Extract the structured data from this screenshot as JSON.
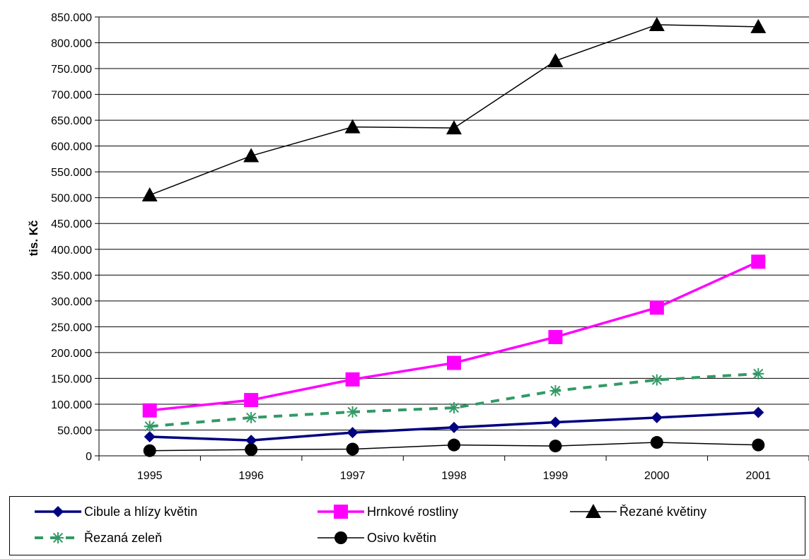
{
  "chart_data": {
    "type": "line",
    "title": "",
    "xlabel": "",
    "ylabel": "tis. Kč",
    "ylim": [
      0,
      850000
    ],
    "y_tick_step": 50000,
    "y_tick_labels": [
      "0",
      "50.000",
      "100.000",
      "150.000",
      "200.000",
      "250.000",
      "300.000",
      "350.000",
      "400.000",
      "450.000",
      "500.000",
      "550.000",
      "600.000",
      "650.000",
      "700.000",
      "750.000",
      "800.000",
      "850.000"
    ],
    "categories": [
      "1995",
      "1996",
      "1997",
      "1998",
      "1999",
      "2000",
      "2001"
    ],
    "grid": true,
    "legend_position": "bottom",
    "series": [
      {
        "name": "Cibule a hlízy květin",
        "values": [
          37000,
          30000,
          45000,
          55000,
          65000,
          74000,
          84000
        ],
        "color": "#000080",
        "marker": "diamond",
        "line": "solid-thick"
      },
      {
        "name": "Hrnkové rostliny",
        "values": [
          88000,
          108000,
          148000,
          180000,
          230000,
          287000,
          376000
        ],
        "color": "#FF00FF",
        "marker": "square",
        "line": "solid-thick"
      },
      {
        "name": "Řezané květiny",
        "values": [
          505000,
          581000,
          637000,
          635000,
          765000,
          835000,
          831000
        ],
        "color": "#000000",
        "marker": "triangle",
        "line": "solid-thin"
      },
      {
        "name": "Řezaná zeleň",
        "values": [
          57000,
          74000,
          85000,
          93000,
          126000,
          147000,
          159000
        ],
        "color": "#339966",
        "marker": "asterisk",
        "line": "dashed"
      },
      {
        "name": "Osivo květin",
        "values": [
          10000,
          12000,
          13000,
          21000,
          19000,
          26000,
          21000
        ],
        "color": "#000000",
        "marker": "circle",
        "line": "solid-thin"
      }
    ]
  }
}
